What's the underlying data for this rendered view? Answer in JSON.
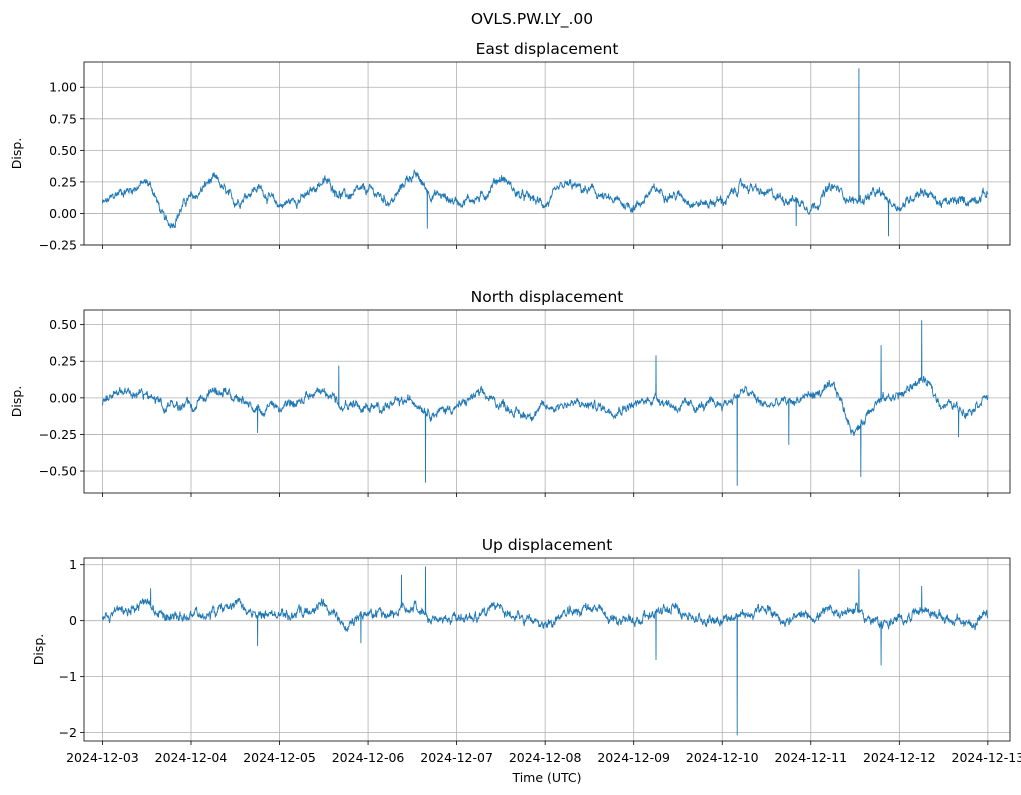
{
  "figure": {
    "suptitle": "OVLS.PW.LY_.00",
    "xlabel": "Time (UTC)"
  },
  "chart_data": [
    {
      "type": "line",
      "title": "East displacement",
      "xlabel": "",
      "ylabel": "Disp.",
      "ylim": [
        -0.25,
        1.2
      ],
      "yticks": [
        -0.25,
        0.0,
        0.25,
        0.5,
        0.75,
        1.0
      ],
      "ytick_labels": [
        "−0.25",
        "0.00",
        "0.25",
        "0.50",
        "0.75",
        "1.00"
      ],
      "xlim": [
        "2024-12-02T19:00",
        "2024-12-13T06:00"
      ],
      "xticks": [
        "2024-12-03",
        "2024-12-04",
        "2024-12-05",
        "2024-12-06",
        "2024-12-07",
        "2024-12-08",
        "2024-12-09",
        "2024-12-10",
        "2024-12-11",
        "2024-12-12",
        "2024-12-13"
      ],
      "show_xtick_labels": false,
      "grid": true,
      "line_color": "#1f77b4",
      "series": [
        {
          "x": [
            "2024-12-03 00:00",
            "2024-12-03 06:00",
            "2024-12-03 12:00",
            "2024-12-03 18:00",
            "2024-12-04 00:00",
            "2024-12-04 06:00",
            "2024-12-04 12:00",
            "2024-12-04 18:00",
            "2024-12-05 00:00",
            "2024-12-05 06:00",
            "2024-12-05 12:00",
            "2024-12-05 18:00",
            "2024-12-06 00:00",
            "2024-12-06 06:00",
            "2024-12-06 12:00",
            "2024-12-06 18:00",
            "2024-12-07 00:00",
            "2024-12-07 06:00",
            "2024-12-07 12:00",
            "2024-12-07 18:00",
            "2024-12-08 00:00",
            "2024-12-08 06:00",
            "2024-12-08 12:00",
            "2024-12-08 18:00",
            "2024-12-09 00:00",
            "2024-12-09 06:00",
            "2024-12-09 12:00",
            "2024-12-09 18:00",
            "2024-12-10 00:00",
            "2024-12-10 06:00",
            "2024-12-10 12:00",
            "2024-12-10 18:00",
            "2024-12-11 00:00",
            "2024-12-11 06:00",
            "2024-12-11 12:00",
            "2024-12-11 18:00",
            "2024-12-12 00:00",
            "2024-12-12 06:00",
            "2024-12-12 12:00",
            "2024-12-12 18:00",
            "2024-12-13 00:00"
          ],
          "y": [
            0.08,
            0.18,
            0.24,
            -0.08,
            0.12,
            0.26,
            0.1,
            0.2,
            0.07,
            0.12,
            0.25,
            0.14,
            0.18,
            0.1,
            0.3,
            0.15,
            0.1,
            0.12,
            0.28,
            0.13,
            0.08,
            0.22,
            0.18,
            0.1,
            0.06,
            0.18,
            0.14,
            0.08,
            0.1,
            0.22,
            0.15,
            0.12,
            0.06,
            0.2,
            0.1,
            0.15,
            0.06,
            0.18,
            0.08,
            0.1,
            0.16
          ]
        }
      ],
      "spikes": [
        {
          "x": "2024-12-11 13:00",
          "y": 1.15
        },
        {
          "x": "2024-12-11 21:00",
          "y": -0.18
        },
        {
          "x": "2024-12-06 16:00",
          "y": -0.12
        },
        {
          "x": "2024-12-10 20:00",
          "y": -0.1
        }
      ]
    },
    {
      "type": "line",
      "title": "North displacement",
      "xlabel": "",
      "ylabel": "Disp.",
      "ylim": [
        -0.65,
        0.6
      ],
      "yticks": [
        -0.5,
        -0.25,
        0.0,
        0.25,
        0.5
      ],
      "ytick_labels": [
        "−0.50",
        "−0.25",
        "0.00",
        "0.25",
        "0.50"
      ],
      "xlim": [
        "2024-12-02T19:00",
        "2024-12-13T06:00"
      ],
      "xticks": [
        "2024-12-03",
        "2024-12-04",
        "2024-12-05",
        "2024-12-06",
        "2024-12-07",
        "2024-12-08",
        "2024-12-09",
        "2024-12-10",
        "2024-12-11",
        "2024-12-12",
        "2024-12-13"
      ],
      "show_xtick_labels": false,
      "grid": true,
      "line_color": "#1f77b4",
      "series": [
        {
          "x": [
            "2024-12-03 00:00",
            "2024-12-03 06:00",
            "2024-12-03 12:00",
            "2024-12-03 18:00",
            "2024-12-04 00:00",
            "2024-12-04 06:00",
            "2024-12-04 12:00",
            "2024-12-04 18:00",
            "2024-12-05 00:00",
            "2024-12-05 06:00",
            "2024-12-05 12:00",
            "2024-12-05 18:00",
            "2024-12-06 00:00",
            "2024-12-06 06:00",
            "2024-12-06 12:00",
            "2024-12-06 18:00",
            "2024-12-07 00:00",
            "2024-12-07 06:00",
            "2024-12-07 12:00",
            "2024-12-07 18:00",
            "2024-12-08 00:00",
            "2024-12-08 06:00",
            "2024-12-08 12:00",
            "2024-12-08 18:00",
            "2024-12-09 00:00",
            "2024-12-09 06:00",
            "2024-12-09 12:00",
            "2024-12-09 18:00",
            "2024-12-10 00:00",
            "2024-12-10 06:00",
            "2024-12-10 12:00",
            "2024-12-10 18:00",
            "2024-12-11 00:00",
            "2024-12-11 06:00",
            "2024-12-11 12:00",
            "2024-12-11 18:00",
            "2024-12-12 00:00",
            "2024-12-12 06:00",
            "2024-12-12 12:00",
            "2024-12-12 18:00",
            "2024-12-13 00:00"
          ],
          "y": [
            -0.03,
            0.05,
            0.02,
            -0.05,
            -0.06,
            0.04,
            0.02,
            -0.08,
            -0.06,
            -0.02,
            0.03,
            -0.04,
            -0.07,
            -0.05,
            -0.02,
            -0.1,
            -0.06,
            0.02,
            -0.04,
            -0.12,
            -0.07,
            -0.04,
            -0.05,
            -0.08,
            -0.05,
            0.0,
            -0.06,
            -0.06,
            -0.04,
            0.04,
            -0.05,
            -0.03,
            0.02,
            0.06,
            -0.22,
            -0.02,
            0.02,
            0.12,
            -0.04,
            -0.08,
            0.01
          ]
        }
      ],
      "spikes": [
        {
          "x": "2024-12-06 15:30",
          "y": -0.58
        },
        {
          "x": "2024-12-10 04:00",
          "y": -0.6
        },
        {
          "x": "2024-12-11 13:30",
          "y": -0.54
        },
        {
          "x": "2024-12-12 06:00",
          "y": 0.53
        },
        {
          "x": "2024-12-09 06:00",
          "y": 0.29
        },
        {
          "x": "2024-12-11 19:00",
          "y": 0.36
        },
        {
          "x": "2024-12-12 16:00",
          "y": -0.27
        },
        {
          "x": "2024-12-10 18:00",
          "y": -0.32
        },
        {
          "x": "2024-12-05 16:00",
          "y": 0.22
        },
        {
          "x": "2024-12-04 18:00",
          "y": -0.24
        }
      ]
    },
    {
      "type": "line",
      "title": "Up displacement",
      "xlabel": "Time (UTC)",
      "ylabel": "Disp.",
      "ylim": [
        -2.15,
        1.12
      ],
      "yticks": [
        -2,
        -1,
        0,
        1
      ],
      "ytick_labels": [
        "−2",
        "−1",
        "0",
        "1"
      ],
      "xlim": [
        "2024-12-02T19:00",
        "2024-12-13T06:00"
      ],
      "xticks": [
        "2024-12-03",
        "2024-12-04",
        "2024-12-05",
        "2024-12-06",
        "2024-12-07",
        "2024-12-08",
        "2024-12-09",
        "2024-12-10",
        "2024-12-11",
        "2024-12-12",
        "2024-12-13"
      ],
      "show_xtick_labels": true,
      "grid": true,
      "line_color": "#1f77b4",
      "series": [
        {
          "x": [
            "2024-12-03 00:00",
            "2024-12-03 06:00",
            "2024-12-03 12:00",
            "2024-12-03 18:00",
            "2024-12-04 00:00",
            "2024-12-04 06:00",
            "2024-12-04 12:00",
            "2024-12-04 18:00",
            "2024-12-05 00:00",
            "2024-12-05 06:00",
            "2024-12-05 12:00",
            "2024-12-05 18:00",
            "2024-12-06 00:00",
            "2024-12-06 06:00",
            "2024-12-06 12:00",
            "2024-12-06 18:00",
            "2024-12-07 00:00",
            "2024-12-07 06:00",
            "2024-12-07 12:00",
            "2024-12-07 18:00",
            "2024-12-08 00:00",
            "2024-12-08 06:00",
            "2024-12-08 12:00",
            "2024-12-08 18:00",
            "2024-12-09 00:00",
            "2024-12-09 06:00",
            "2024-12-09 12:00",
            "2024-12-09 18:00",
            "2024-12-10 00:00",
            "2024-12-10 06:00",
            "2024-12-10 12:00",
            "2024-12-10 18:00",
            "2024-12-11 00:00",
            "2024-12-11 06:00",
            "2024-12-11 12:00",
            "2024-12-11 18:00",
            "2024-12-12 00:00",
            "2024-12-12 06:00",
            "2024-12-12 12:00",
            "2024-12-12 18:00",
            "2024-12-13 00:00"
          ],
          "y": [
            0.05,
            0.18,
            0.28,
            0.02,
            0.05,
            0.15,
            0.3,
            0.05,
            0.04,
            0.12,
            0.25,
            0.0,
            0.06,
            0.15,
            0.25,
            -0.02,
            0.05,
            0.1,
            0.22,
            0.0,
            -0.05,
            0.12,
            0.25,
            0.02,
            0.02,
            0.15,
            0.2,
            0.02,
            0.05,
            0.1,
            0.18,
            0.0,
            0.08,
            0.15,
            0.2,
            -0.05,
            0.0,
            0.22,
            0.05,
            -0.05,
            0.05
          ]
        }
      ],
      "spikes": [
        {
          "x": "2024-12-10 04:00",
          "y": -2.05
        },
        {
          "x": "2024-12-06 15:30",
          "y": 0.97
        },
        {
          "x": "2024-12-06 09:00",
          "y": 0.82
        },
        {
          "x": "2024-12-11 13:00",
          "y": 0.92
        },
        {
          "x": "2024-12-09 06:00",
          "y": -0.7
        },
        {
          "x": "2024-12-11 19:00",
          "y": -0.8
        },
        {
          "x": "2024-12-04 18:00",
          "y": -0.45
        },
        {
          "x": "2024-12-03 13:00",
          "y": 0.58
        },
        {
          "x": "2024-12-12 06:00",
          "y": 0.62
        },
        {
          "x": "2024-12-05 22:00",
          "y": -0.4
        }
      ]
    }
  ]
}
